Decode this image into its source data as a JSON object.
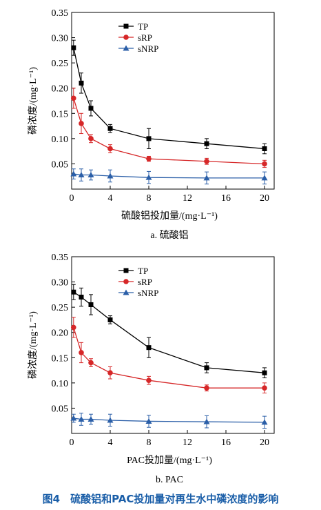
{
  "figure_caption": "图4　硫酸铝和PAC投加量对再生水中磷浓度的影响",
  "colors": {
    "TP": "#000000",
    "sRP": "#d62728",
    "sNRP": "#2b5fa8"
  },
  "chart_data": [
    {
      "type": "line",
      "subtitle": "a. 硫酸铝",
      "xlabel": "硫酸铝投加量/(mg·L⁻¹)",
      "ylabel": "磷浓度/(mg·L⁻¹)",
      "xlim": [
        0,
        21
      ],
      "ylim": [
        0.0,
        0.35
      ],
      "xticks": [
        0,
        4,
        8,
        12,
        16,
        20
      ],
      "yticks": [
        0.05,
        0.1,
        0.15,
        0.2,
        0.25,
        0.3,
        0.35
      ],
      "legend_position": "top-center",
      "x": [
        0.2,
        1,
        2,
        4,
        8,
        14,
        20
      ],
      "series": [
        {
          "name": "TP",
          "marker": "square",
          "values": [
            0.28,
            0.21,
            0.16,
            0.12,
            0.1,
            0.09,
            0.08
          ],
          "errors": [
            0.015,
            0.02,
            0.015,
            0.008,
            0.02,
            0.01,
            0.01
          ]
        },
        {
          "name": "sRP",
          "marker": "circle",
          "values": [
            0.18,
            0.13,
            0.1,
            0.08,
            0.06,
            0.055,
            0.05
          ],
          "errors": [
            0.02,
            0.02,
            0.008,
            0.008,
            0.005,
            0.006,
            0.007
          ]
        },
        {
          "name": "sNRP",
          "marker": "triangle",
          "values": [
            0.03,
            0.028,
            0.028,
            0.026,
            0.023,
            0.022,
            0.022
          ],
          "errors": [
            0.01,
            0.012,
            0.01,
            0.012,
            0.012,
            0.012,
            0.012
          ]
        }
      ]
    },
    {
      "type": "line",
      "subtitle": "b. PAC",
      "xlabel": "PAC投加量/(mg·L⁻¹)",
      "ylabel": "磷浓度/(mg·L⁻¹)",
      "xlim": [
        0,
        21
      ],
      "ylim": [
        0.0,
        0.35
      ],
      "xticks": [
        0,
        4,
        8,
        12,
        16,
        20
      ],
      "yticks": [
        0.05,
        0.1,
        0.15,
        0.2,
        0.25,
        0.3,
        0.35
      ],
      "legend_position": "top-center",
      "x": [
        0.2,
        1,
        2,
        4,
        8,
        14,
        20
      ],
      "series": [
        {
          "name": "TP",
          "marker": "square",
          "values": [
            0.28,
            0.27,
            0.255,
            0.225,
            0.17,
            0.13,
            0.12
          ],
          "errors": [
            0.015,
            0.018,
            0.02,
            0.008,
            0.02,
            0.01,
            0.01
          ]
        },
        {
          "name": "sRP",
          "marker": "circle",
          "values": [
            0.21,
            0.16,
            0.14,
            0.12,
            0.105,
            0.09,
            0.09
          ],
          "errors": [
            0.02,
            0.02,
            0.008,
            0.012,
            0.008,
            0.006,
            0.01
          ]
        },
        {
          "name": "sNRP",
          "marker": "triangle",
          "values": [
            0.03,
            0.028,
            0.028,
            0.026,
            0.024,
            0.023,
            0.022
          ],
          "errors": [
            0.008,
            0.012,
            0.01,
            0.012,
            0.012,
            0.012,
            0.012
          ]
        }
      ]
    }
  ]
}
